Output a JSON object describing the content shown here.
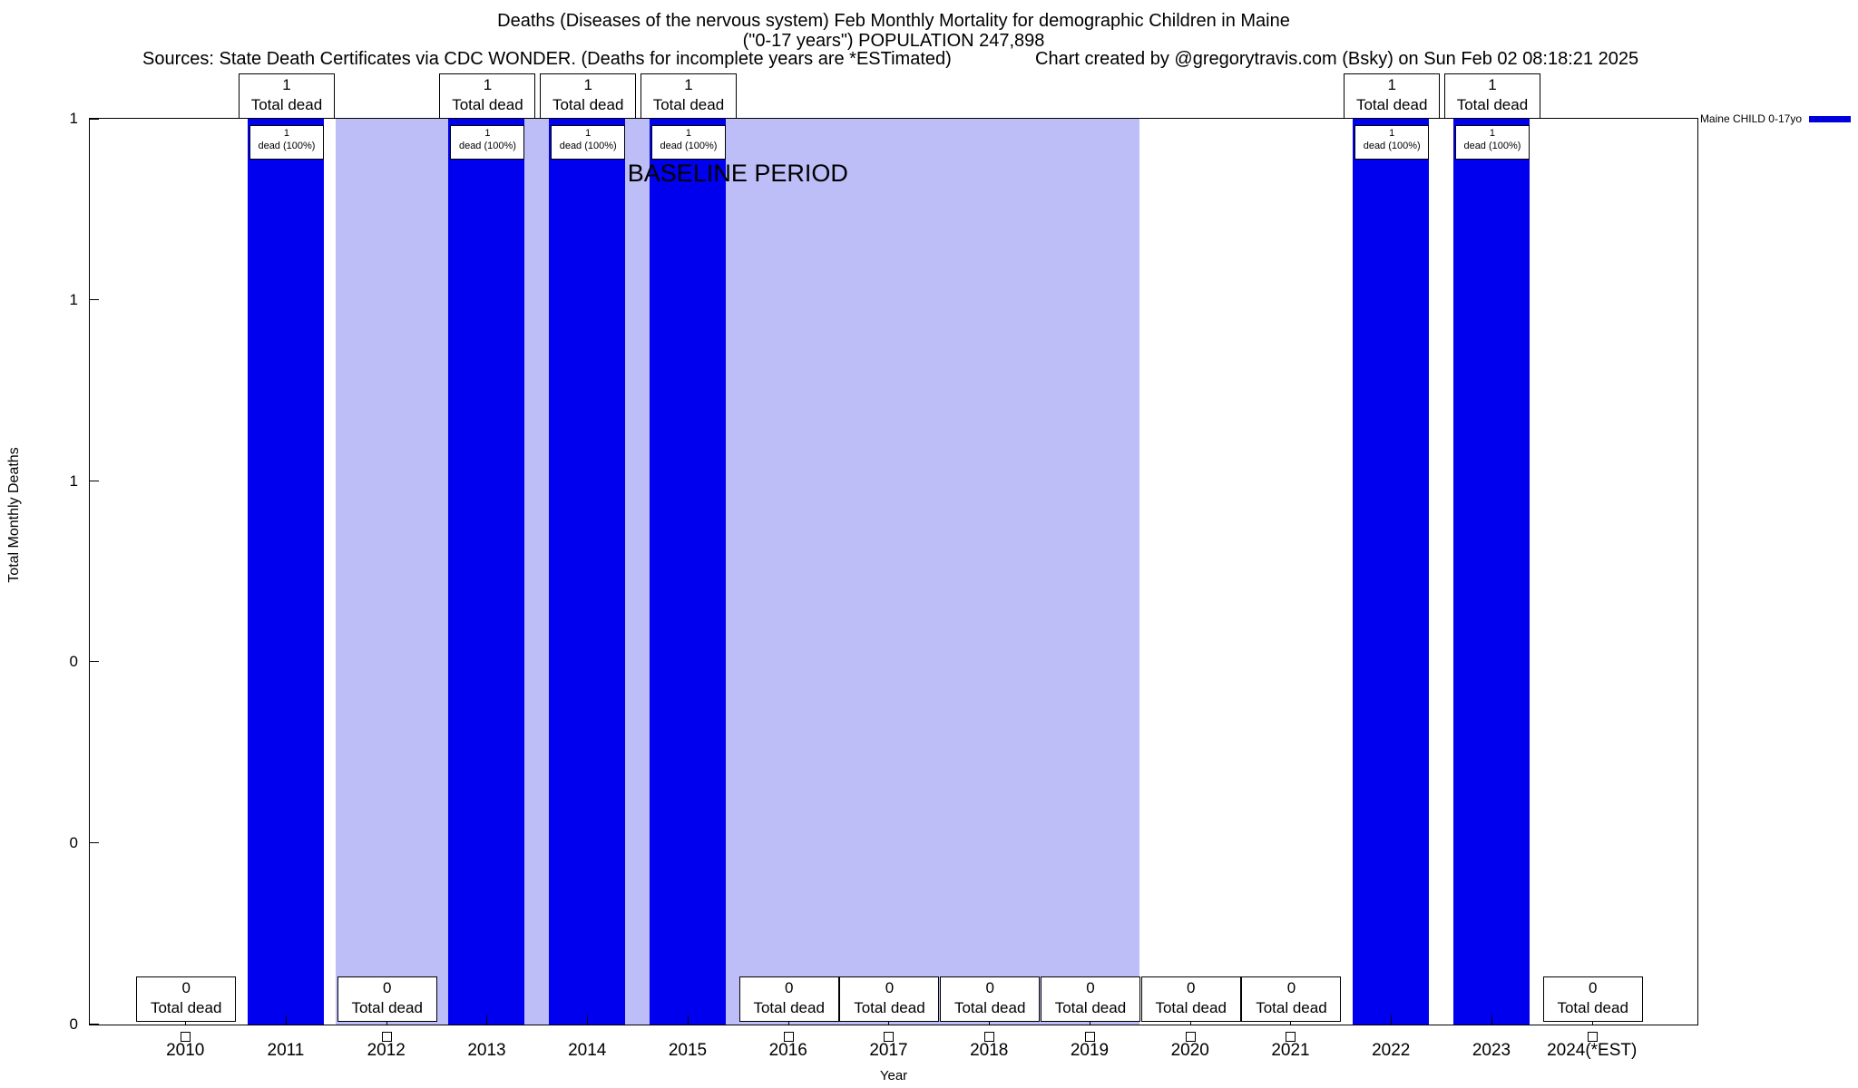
{
  "header": {
    "sources": "Sources: State Death Certificates via CDC WONDER. (Deaths for incomplete years are *ESTimated)",
    "credit": "Chart created by @gregorytravis.com (Bsky) on Sun Feb 02 08:18:21 2025"
  },
  "legend": {
    "label": "Maine CHILD 0-17yo",
    "color": "#0000dd"
  },
  "chart_data": {
    "type": "bar",
    "title": "Deaths (Diseases of the nervous system) Feb Monthly Mortality for demographic Children in Maine",
    "subtitle": "(\"0-17 years\") POPULATION 247,898",
    "xlabel": "Year",
    "ylabel": "Total Monthly Deaths",
    "ylim": [
      0,
      1
    ],
    "grid": false,
    "legend_position": "top-right-outside",
    "categories": [
      "2010",
      "2011",
      "2012",
      "2013",
      "2014",
      "2015",
      "2016",
      "2017",
      "2018",
      "2019",
      "2020",
      "2021",
      "2022",
      "2023",
      "2024(*EST)"
    ],
    "values": [
      0,
      1,
      0,
      1,
      1,
      1,
      0,
      0,
      0,
      0,
      0,
      0,
      1,
      1,
      0
    ],
    "bar_color": "#0000ee",
    "yticks": [
      {
        "pos": 0.0,
        "label": "0"
      },
      {
        "pos": 0.2,
        "label": "0"
      },
      {
        "pos": 0.4,
        "label": "0"
      },
      {
        "pos": 0.6,
        "label": "1"
      },
      {
        "pos": 0.8,
        "label": "1"
      },
      {
        "pos": 1.0,
        "label": "1"
      }
    ],
    "baseline_region": {
      "label": "BASELINE PERIOD",
      "from_category": "2012",
      "to_category": "2019",
      "color": "#bdbdf8"
    },
    "labels": {
      "total_dead": "Total dead",
      "dead_pct": "dead (100%)"
    }
  }
}
